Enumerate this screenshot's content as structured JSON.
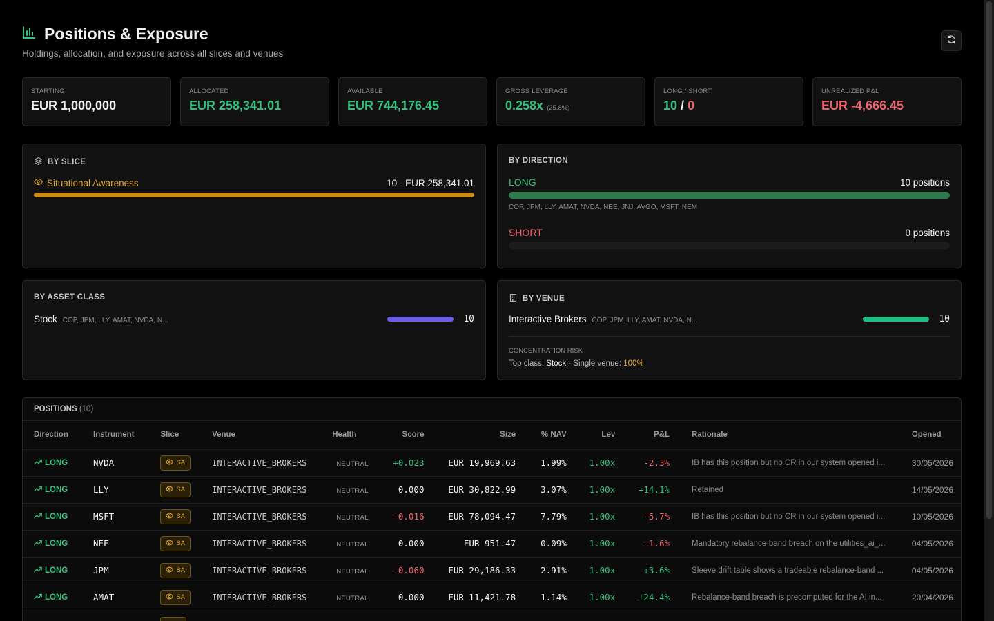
{
  "header": {
    "title": "Positions & Exposure",
    "subtitle": "Holdings, allocation, and exposure across all slices and venues"
  },
  "stats": [
    {
      "label": "STARTING",
      "value": "EUR 1,000,000"
    },
    {
      "label": "ALLOCATED",
      "value": "EUR 258,341.01"
    },
    {
      "label": "AVAILABLE",
      "value": "EUR 744,176.45"
    },
    {
      "label": "GROSS LEVERAGE",
      "value": "0.258x",
      "note": "(25.8%)"
    },
    {
      "label": "LONG / SHORT",
      "long": "10",
      "sep": "/",
      "short": "0"
    },
    {
      "label": "UNREALIZED P&L",
      "value": "EUR -4,666.45"
    }
  ],
  "by_slice": {
    "title": "BY SLICE",
    "items": [
      {
        "name": "Situational Awareness",
        "summary": "10 - EUR 258,341.01",
        "fraction": 1.0,
        "color": "#c98b12"
      }
    ]
  },
  "by_direction": {
    "title": "BY DIRECTION",
    "long": {
      "label": "LONG",
      "count": "10 positions",
      "tickers": "COP, JPM, LLY, AMAT, NVDA, NEE, JNJ, AVGO, MSFT, NEM",
      "fraction": 1.0,
      "color": "#2f7a4c"
    },
    "short": {
      "label": "SHORT",
      "count": "0 positions",
      "fraction": 0.0
    }
  },
  "by_asset_class": {
    "title": "BY ASSET CLASS",
    "items": [
      {
        "name": "Stock",
        "tickers": "COP, JPM, LLY, AMAT, NVDA, N...",
        "count": "10",
        "fraction": 1.0,
        "color": "#6a5ee8"
      }
    ]
  },
  "by_venue": {
    "title": "BY VENUE",
    "items": [
      {
        "name": "Interactive Brokers",
        "tickers": "COP, JPM, LLY, AMAT, NVDA, N...",
        "count": "10",
        "fraction": 1.0,
        "color": "#1fbf84"
      }
    ],
    "concentration_label": "CONCENTRATION RISK",
    "concentration_prefix": "Top class: ",
    "concentration_class": "Stock",
    "concentration_mid": " - Single venue: ",
    "concentration_pct": "100%"
  },
  "positions": {
    "title": "POSITIONS",
    "count": "(10)",
    "columns": [
      "Direction",
      "Instrument",
      "Slice",
      "Venue",
      "Health",
      "Score",
      "Size",
      "% NAV",
      "Lev",
      "P&L",
      "Rationale",
      "Opened"
    ],
    "rows": [
      {
        "dir": "LONG",
        "inst": "NVDA",
        "slice": "SA",
        "venue": "INTERACTIVE_BROKERS",
        "health": "NEUTRAL",
        "score": "+0.023",
        "score_tone": "green",
        "size": "EUR 19,969.63",
        "nav": "1.99%",
        "lev": "1.00x",
        "pnl": "-2.3%",
        "pnl_tone": "red",
        "rationale": "IB has this position but no CR in our system opened i...",
        "opened": "30/05/2026"
      },
      {
        "dir": "LONG",
        "inst": "LLY",
        "slice": "SA",
        "venue": "INTERACTIVE_BROKERS",
        "health": "NEUTRAL",
        "score": "0.000",
        "score_tone": "white",
        "size": "EUR 30,822.99",
        "nav": "3.07%",
        "lev": "1.00x",
        "pnl": "+14.1%",
        "pnl_tone": "green",
        "rationale": "Retained",
        "opened": "14/05/2026"
      },
      {
        "dir": "LONG",
        "inst": "MSFT",
        "slice": "SA",
        "venue": "INTERACTIVE_BROKERS",
        "health": "NEUTRAL",
        "score": "-0.016",
        "score_tone": "red",
        "size": "EUR 78,094.47",
        "nav": "7.79%",
        "lev": "1.00x",
        "pnl": "-5.7%",
        "pnl_tone": "red",
        "rationale": "IB has this position but no CR in our system opened i...",
        "opened": "10/05/2026"
      },
      {
        "dir": "LONG",
        "inst": "NEE",
        "slice": "SA",
        "venue": "INTERACTIVE_BROKERS",
        "health": "NEUTRAL",
        "score": "0.000",
        "score_tone": "white",
        "size": "EUR 951.47",
        "nav": "0.09%",
        "lev": "1.00x",
        "pnl": "-1.6%",
        "pnl_tone": "red",
        "rationale": "Mandatory rebalance-band breach on the utilities_ai_...",
        "opened": "04/05/2026"
      },
      {
        "dir": "LONG",
        "inst": "JPM",
        "slice": "SA",
        "venue": "INTERACTIVE_BROKERS",
        "health": "NEUTRAL",
        "score": "-0.060",
        "score_tone": "red",
        "size": "EUR 29,186.33",
        "nav": "2.91%",
        "lev": "1.00x",
        "pnl": "+3.6%",
        "pnl_tone": "green",
        "rationale": "Sleeve drift table shows a tradeable rebalance-band ...",
        "opened": "04/05/2026"
      },
      {
        "dir": "LONG",
        "inst": "AMAT",
        "slice": "SA",
        "venue": "INTERACTIVE_BROKERS",
        "health": "NEUTRAL",
        "score": "0.000",
        "score_tone": "white",
        "size": "EUR 11,421.78",
        "nav": "1.14%",
        "lev": "1.00x",
        "pnl": "+24.4%",
        "pnl_tone": "green",
        "rationale": "Rebalance-band breach is precomputed for the AI in...",
        "opened": "20/04/2026"
      }
    ]
  }
}
